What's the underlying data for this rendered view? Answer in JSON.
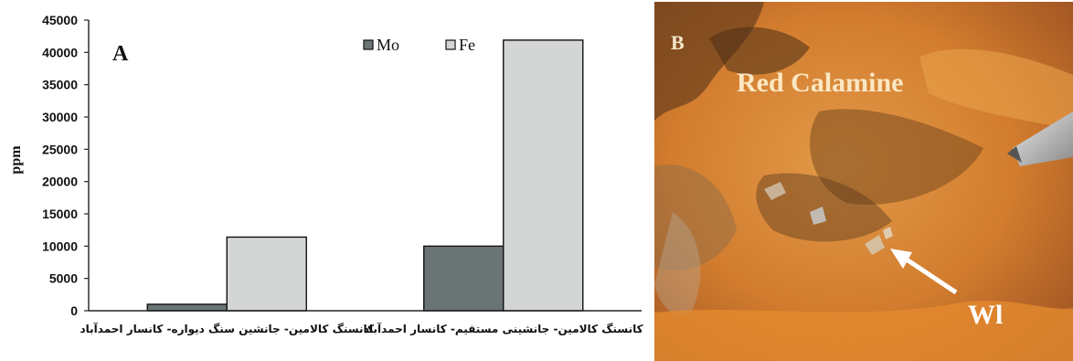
{
  "panel_a": {
    "label": "A",
    "chart_data": {
      "type": "bar",
      "categories": [
        "کانسنگ کالامین- جانشین سنگ دیواره- کانسار احمدآباد",
        "کانسنگ کالامین- جانشینی مستقیم- کانسار احمدآباد"
      ],
      "series": [
        {
          "name": "Mo",
          "values": [
            1000,
            10000
          ],
          "color": "#6b7475"
        },
        {
          "name": "Fe",
          "values": [
            11400,
            41900
          ],
          "color": "#d4d6d6"
        }
      ],
      "title": "",
      "xlabel": "",
      "ylabel": "ppm",
      "ylim": [
        0,
        45000
      ],
      "yticks": [
        0,
        5000,
        10000,
        15000,
        20000,
        25000,
        30000,
        35000,
        40000,
        45000
      ],
      "grid": false,
      "legend_position": "top-right"
    }
  },
  "panel_b": {
    "label": "B",
    "mineral_label": "Red Calamine",
    "arrow_label": "Wl",
    "colors": {
      "rock_orange": "#d98a36",
      "rock_dark": "#5a3a1e",
      "highlight": "#f3c57a"
    }
  }
}
